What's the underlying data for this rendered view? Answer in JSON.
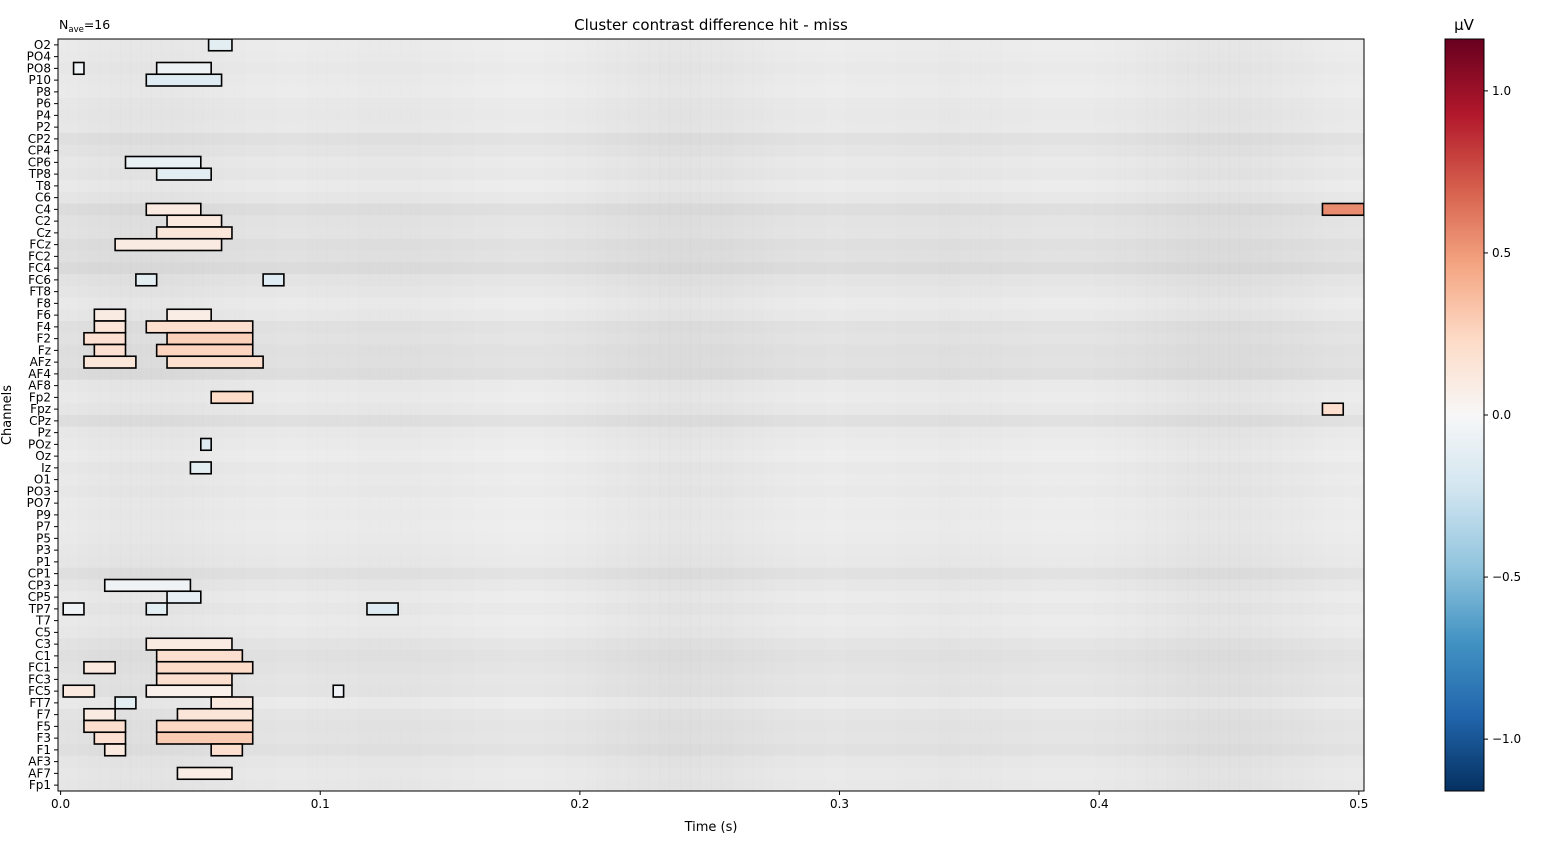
{
  "chart_data": {
    "type": "heatmap",
    "title": "Cluster contrast difference hit - miss",
    "nave_prefix": "N",
    "nave_sub": "ave",
    "nave_value": "=16",
    "xlabel": "Time (s)",
    "ylabel": "Channels",
    "xlim": [
      -0.001,
      0.502
    ],
    "x_ticks": [
      0.0,
      0.1,
      0.2,
      0.3,
      0.4,
      0.5
    ],
    "x_tick_labels": [
      "0.0",
      "0.1",
      "0.2",
      "0.3",
      "0.4",
      "0.5"
    ],
    "time_step": 0.004,
    "channels": [
      "O2",
      "PO4",
      "PO8",
      "P10",
      "P8",
      "P6",
      "P4",
      "P2",
      "CP2",
      "CP4",
      "CP6",
      "TP8",
      "T8",
      "C6",
      "C4",
      "C2",
      "Cz",
      "FCz",
      "FC2",
      "FC4",
      "FC6",
      "FT8",
      "F8",
      "F6",
      "F4",
      "F2",
      "Fz",
      "AFz",
      "AF4",
      "AF8",
      "Fp2",
      "Fpz",
      "CPz",
      "Pz",
      "POz",
      "Oz",
      "Iz",
      "O1",
      "PO3",
      "PO7",
      "P9",
      "P7",
      "P5",
      "P3",
      "P1",
      "CP1",
      "CP3",
      "CP5",
      "TP7",
      "T7",
      "C5",
      "C3",
      "C1",
      "FC1",
      "FC3",
      "FC5",
      "FT7",
      "F7",
      "F5",
      "F3",
      "F1",
      "AF3",
      "AF7",
      "Fp1"
    ],
    "background_shade": [
      0.04,
      0.05,
      0.06,
      0.05,
      0.04,
      0.06,
      0.07,
      0.06,
      0.12,
      0.09,
      0.06,
      0.08,
      0.05,
      0.08,
      0.15,
      0.11,
      0.1,
      0.14,
      0.12,
      0.16,
      0.1,
      0.08,
      0.05,
      0.07,
      0.12,
      0.11,
      0.13,
      0.12,
      0.15,
      0.06,
      0.05,
      0.07,
      0.13,
      0.06,
      0.05,
      0.03,
      0.06,
      0.05,
      0.06,
      0.04,
      0.05,
      0.04,
      0.05,
      0.06,
      0.07,
      0.12,
      0.08,
      0.05,
      0.07,
      0.05,
      0.06,
      0.1,
      0.12,
      0.11,
      0.09,
      0.1,
      0.05,
      0.09,
      0.11,
      0.1,
      0.12,
      0.08,
      0.06,
      0.07
    ],
    "clusters": [
      {
        "channel": "O2",
        "t_start": 0.057,
        "t_end": 0.066,
        "value": -0.12
      },
      {
        "channel": "PO8",
        "t_start": 0.005,
        "t_end": 0.009,
        "value": -0.05
      },
      {
        "channel": "PO8",
        "t_start": 0.037,
        "t_end": 0.058,
        "value": -0.06
      },
      {
        "channel": "P10",
        "t_start": 0.033,
        "t_end": 0.062,
        "value": -0.15
      },
      {
        "channel": "CP6",
        "t_start": 0.025,
        "t_end": 0.054,
        "value": -0.08
      },
      {
        "channel": "TP8",
        "t_start": 0.037,
        "t_end": 0.058,
        "value": -0.12
      },
      {
        "channel": "C4",
        "t_start": 0.033,
        "t_end": 0.054,
        "value": 0.1
      },
      {
        "channel": "C4",
        "t_start": 0.486,
        "t_end": 0.502,
        "value": 0.55
      },
      {
        "channel": "C2",
        "t_start": 0.041,
        "t_end": 0.062,
        "value": 0.12
      },
      {
        "channel": "Cz",
        "t_start": 0.037,
        "t_end": 0.066,
        "value": 0.14
      },
      {
        "channel": "FCz",
        "t_start": 0.021,
        "t_end": 0.062,
        "value": 0.1
      },
      {
        "channel": "FC6",
        "t_start": 0.029,
        "t_end": 0.037,
        "value": -0.12
      },
      {
        "channel": "FC6",
        "t_start": 0.078,
        "t_end": 0.086,
        "value": -0.14
      },
      {
        "channel": "F6",
        "t_start": 0.013,
        "t_end": 0.025,
        "value": 0.1
      },
      {
        "channel": "F6",
        "t_start": 0.041,
        "t_end": 0.058,
        "value": 0.08
      },
      {
        "channel": "F4",
        "t_start": 0.013,
        "t_end": 0.025,
        "value": 0.15
      },
      {
        "channel": "F4",
        "t_start": 0.033,
        "t_end": 0.074,
        "value": 0.2
      },
      {
        "channel": "F2",
        "t_start": 0.009,
        "t_end": 0.025,
        "value": 0.18
      },
      {
        "channel": "F2",
        "t_start": 0.041,
        "t_end": 0.074,
        "value": 0.28
      },
      {
        "channel": "Fz",
        "t_start": 0.013,
        "t_end": 0.025,
        "value": 0.18
      },
      {
        "channel": "Fz",
        "t_start": 0.037,
        "t_end": 0.074,
        "value": 0.26
      },
      {
        "channel": "AFz",
        "t_start": 0.009,
        "t_end": 0.029,
        "value": 0.14
      },
      {
        "channel": "AFz",
        "t_start": 0.041,
        "t_end": 0.078,
        "value": 0.2
      },
      {
        "channel": "Fp2",
        "t_start": 0.058,
        "t_end": 0.074,
        "value": 0.22
      },
      {
        "channel": "Fpz",
        "t_start": 0.486,
        "t_end": 0.494,
        "value": 0.2
      },
      {
        "channel": "POz",
        "t_start": 0.054,
        "t_end": 0.058,
        "value": -0.15
      },
      {
        "channel": "Iz",
        "t_start": 0.05,
        "t_end": 0.058,
        "value": -0.12
      },
      {
        "channel": "CP3",
        "t_start": 0.017,
        "t_end": 0.05,
        "value": -0.05
      },
      {
        "channel": "CP5",
        "t_start": 0.041,
        "t_end": 0.054,
        "value": -0.1
      },
      {
        "channel": "TP7",
        "t_start": 0.001,
        "t_end": 0.009,
        "value": -0.05
      },
      {
        "channel": "TP7",
        "t_start": 0.033,
        "t_end": 0.041,
        "value": -0.12
      },
      {
        "channel": "TP7",
        "t_start": 0.118,
        "t_end": 0.13,
        "value": -0.15
      },
      {
        "channel": "C3",
        "t_start": 0.033,
        "t_end": 0.066,
        "value": 0.1
      },
      {
        "channel": "C1",
        "t_start": 0.037,
        "t_end": 0.07,
        "value": 0.2
      },
      {
        "channel": "FC1",
        "t_start": 0.009,
        "t_end": 0.021,
        "value": 0.12
      },
      {
        "channel": "FC1",
        "t_start": 0.037,
        "t_end": 0.074,
        "value": 0.22
      },
      {
        "channel": "FC3",
        "t_start": 0.037,
        "t_end": 0.066,
        "value": 0.2
      },
      {
        "channel": "FC5",
        "t_start": 0.001,
        "t_end": 0.013,
        "value": 0.12
      },
      {
        "channel": "FC5",
        "t_start": 0.033,
        "t_end": 0.066,
        "value": 0.06
      },
      {
        "channel": "FC5",
        "t_start": 0.105,
        "t_end": 0.109,
        "value": -0.05
      },
      {
        "channel": "FT7",
        "t_start": 0.021,
        "t_end": 0.029,
        "value": -0.12
      },
      {
        "channel": "FT7",
        "t_start": 0.058,
        "t_end": 0.074,
        "value": 0.12
      },
      {
        "channel": "F7",
        "t_start": 0.009,
        "t_end": 0.021,
        "value": 0.1
      },
      {
        "channel": "F7",
        "t_start": 0.045,
        "t_end": 0.074,
        "value": 0.15
      },
      {
        "channel": "F5",
        "t_start": 0.009,
        "t_end": 0.025,
        "value": 0.2
      },
      {
        "channel": "F5",
        "t_start": 0.037,
        "t_end": 0.074,
        "value": 0.24
      },
      {
        "channel": "F3",
        "t_start": 0.013,
        "t_end": 0.025,
        "value": 0.18
      },
      {
        "channel": "F3",
        "t_start": 0.037,
        "t_end": 0.074,
        "value": 0.3
      },
      {
        "channel": "F1",
        "t_start": 0.017,
        "t_end": 0.025,
        "value": 0.12
      },
      {
        "channel": "F1",
        "t_start": 0.058,
        "t_end": 0.07,
        "value": 0.2
      },
      {
        "channel": "AF7",
        "t_start": 0.045,
        "t_end": 0.066,
        "value": 0.08
      }
    ],
    "colorbar": {
      "label": "μV",
      "range": [
        -1.16,
        1.16
      ],
      "ticks": [
        1.0,
        0.5,
        0.0,
        -0.5,
        -1.0
      ],
      "tick_labels": [
        "1.0",
        "0.5",
        "0.0",
        "−0.5",
        "−1.0"
      ],
      "colormap": "RdBu_r"
    }
  }
}
